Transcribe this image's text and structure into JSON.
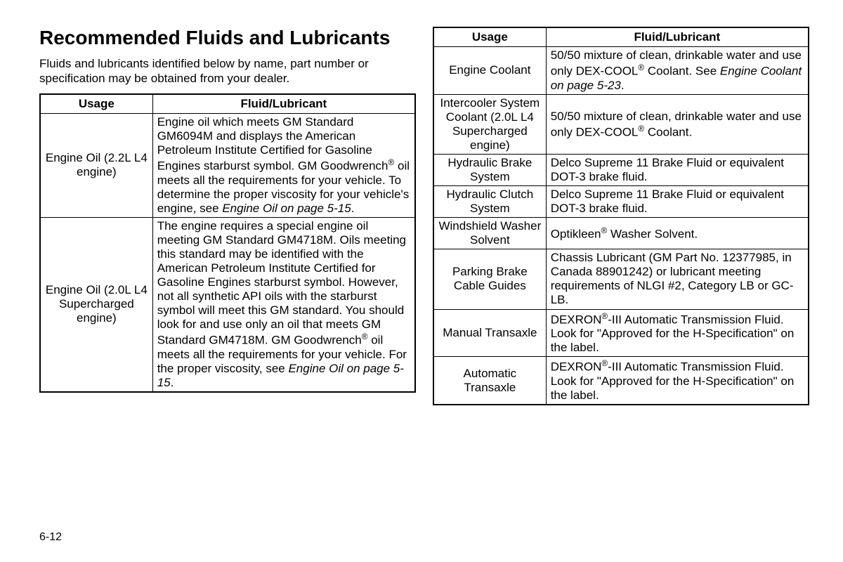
{
  "title": "Recommended Fluids and Lubricants",
  "intro": "Fluids and lubricants identified below by name, part number or specification may be obtained from your dealer.",
  "pageNumber": "6-12",
  "tableHeaders": {
    "usage": "Usage",
    "fluid": "Fluid/Lubricant"
  },
  "leftTable": [
    {
      "usage": "Engine Oil (2.2L L4 engine)",
      "fluidHtml": "Engine oil which meets GM Standard GM6094M and displays the American Petroleum Institute Certified for Gasoline Engines starburst symbol. GM Goodwrench<sup>®</sup> oil meets all the requirements for your vehicle. To determine the proper viscosity for your vehicle's engine, see <span class=\"italic\">Engine Oil on page 5-15</span>."
    },
    {
      "usage": "Engine Oil (2.0L L4 Supercharged engine)",
      "fluidHtml": "The engine requires a special engine oil meeting GM Standard GM4718M. Oils meeting this standard may be identified with the American Petroleum Institute Certified for Gasoline Engines starburst symbol. However, not all synthetic API oils with the starburst symbol will meet this GM standard. You should look for and use only an oil that meets GM Standard GM4718M. GM Goodwrench<sup>®</sup> oil meets all the requirements for your vehicle. For the proper viscosity, see <span class=\"italic\">Engine Oil on page 5-15</span>."
    }
  ],
  "rightTable": [
    {
      "usage": "Engine Coolant",
      "fluidHtml": "50/50 mixture of clean, drinkable water and use only DEX-COOL<sup>®</sup> Coolant. See <span class=\"italic\">Engine Coolant on page 5-23</span>."
    },
    {
      "usage": "Intercooler System Coolant (2.0L L4 Supercharged engine)",
      "fluidHtml": "50/50 mixture of clean, drinkable water and use only DEX-COOL<sup>®</sup> Coolant."
    },
    {
      "usage": "Hydraulic Brake System",
      "fluidHtml": "Delco Supreme 11 Brake Fluid or equivalent DOT-3 brake fluid."
    },
    {
      "usage": "Hydraulic Clutch System",
      "fluidHtml": "Delco Supreme 11 Brake Fluid or equivalent DOT-3 brake fluid."
    },
    {
      "usage": "Windshield Washer Solvent",
      "fluidHtml": "Optikleen<sup>®</sup> Washer Solvent."
    },
    {
      "usage": "Parking Brake Cable Guides",
      "fluidHtml": "Chassis Lubricant (GM Part No. 12377985, in Canada 88901242) or lubricant meeting requirements of NLGI #2, Category LB or GC-LB."
    },
    {
      "usage": "Manual Transaxle",
      "fluidHtml": "DEXRON<sup>®</sup>-III Automatic Transmission Fluid. Look for \"Approved for the H-Specification\" on the label."
    },
    {
      "usage": "Automatic Transaxle",
      "fluidHtml": "DEXRON<sup>®</sup>-III Automatic Transmission Fluid. Look for \"Approved for the H-Specification\" on the label."
    }
  ]
}
